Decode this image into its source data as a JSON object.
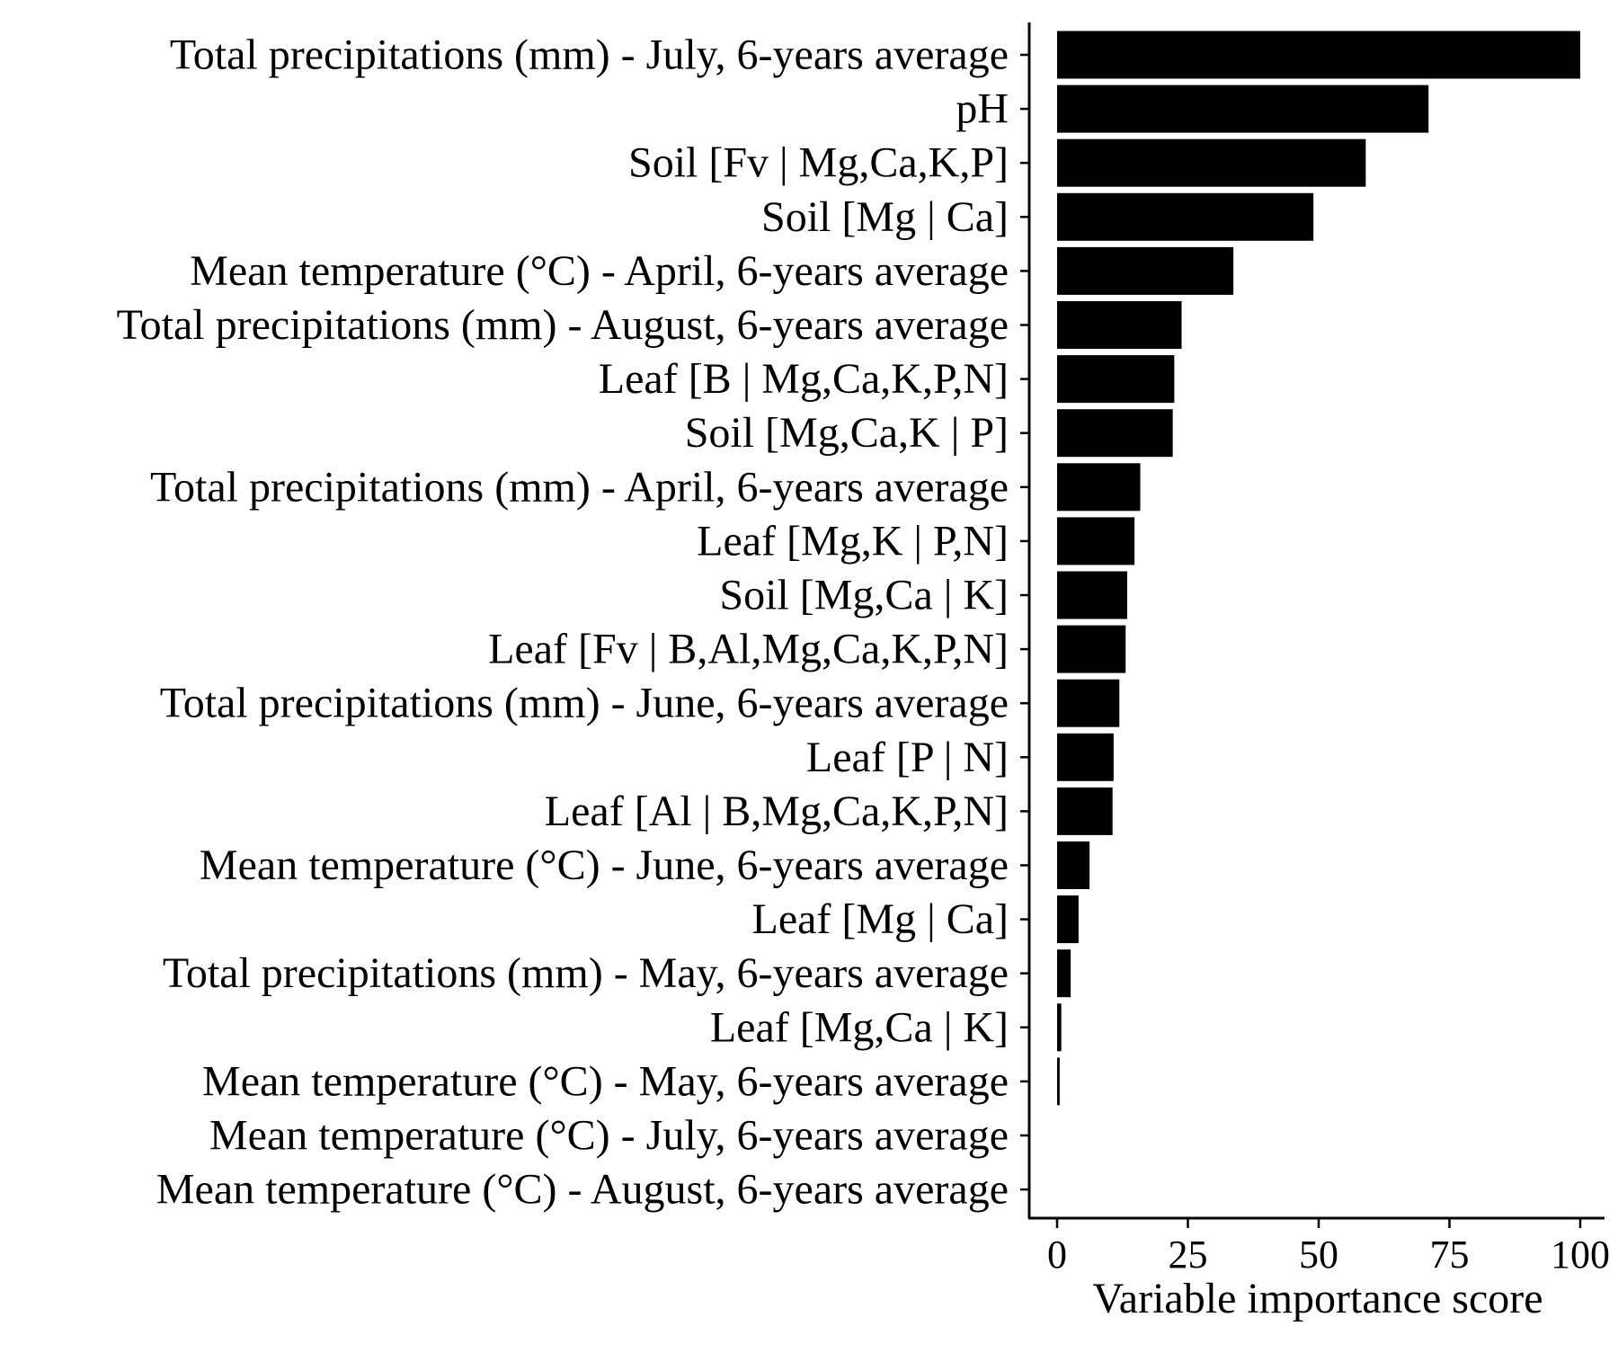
{
  "chart_data": {
    "type": "bar",
    "orientation": "horizontal",
    "xlabel": "Variable importance score",
    "ylabel": "",
    "xlim": [
      0,
      100
    ],
    "xticks": [
      0,
      25,
      50,
      75,
      100
    ],
    "grid": false,
    "bar_color": "#000000",
    "categories": [
      "Total precipitations (mm) - July, 6-years average",
      "pH",
      "Soil [Fv | Mg,Ca,K,P]",
      "Soil [Mg | Ca]",
      "Mean temperature (°C) - April, 6-years average",
      "Total precipitations (mm) - August, 6-years average",
      "Leaf [B | Mg,Ca,K,P,N]",
      "Soil [Mg,Ca,K | P]",
      "Total precipitations (mm) - April, 6-years average",
      "Leaf [Mg,K | P,N]",
      "Soil [Mg,Ca | K]",
      "Leaf [Fv | B,Al,Mg,Ca,K,P,N]",
      "Total precipitations (mm) - June, 6-years average",
      "Leaf [P | N]",
      "Leaf [Al | B,Mg,Ca,K,P,N]",
      "Mean temperature (°C) - June, 6-years average",
      "Leaf [Mg | Ca]",
      "Total precipitations (mm) - May, 6-years average",
      "Leaf [Mg,Ca | K]",
      "Mean temperature (°C) - May, 6-years average",
      "Mean temperature (°C) - July, 6-years average",
      "Mean temperature (°C) - August, 6-years average"
    ],
    "values": [
      100,
      71,
      59,
      49,
      33.7,
      23.8,
      22.4,
      22.1,
      15.9,
      14.8,
      13.4,
      13.1,
      11.9,
      10.8,
      10.6,
      6.2,
      4.1,
      2.6,
      0.8,
      0.5,
      0,
      0
    ]
  }
}
